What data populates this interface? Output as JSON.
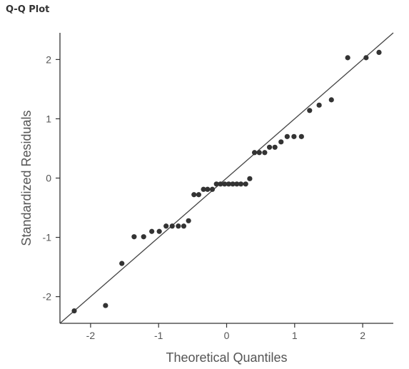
{
  "panel_title": "Q-Q Plot",
  "colors": {
    "point": "#333333",
    "line": "#444444",
    "axis": "#333333",
    "text": "#555555"
  },
  "chart_data": {
    "type": "scatter",
    "title": "",
    "xlabel": "Theoretical Quantiles",
    "ylabel": "Standardized Residuals",
    "xlim": [
      -2.45,
      2.45
    ],
    "ylim": [
      -2.45,
      2.45
    ],
    "xticks": [
      -2,
      -1,
      0,
      1,
      2
    ],
    "yticks": [
      -2,
      -1,
      0,
      1,
      2
    ],
    "x_tick_labels": [
      "-2",
      "-1",
      "0",
      "1",
      "2"
    ],
    "y_tick_labels": [
      "-2",
      "-1",
      "0",
      "1",
      "2"
    ],
    "grid": false,
    "reference_line": {
      "slope": 1,
      "intercept": 0
    },
    "series": [
      {
        "points": [
          [
            -2.24,
            -2.24
          ],
          [
            -1.78,
            -2.15
          ],
          [
            -1.54,
            -1.44
          ],
          [
            -1.36,
            -0.99
          ],
          [
            -1.22,
            -0.99
          ],
          [
            -1.1,
            -0.9
          ],
          [
            -0.99,
            -0.9
          ],
          [
            -0.89,
            -0.81
          ],
          [
            -0.8,
            -0.81
          ],
          [
            -0.71,
            -0.81
          ],
          [
            -0.63,
            -0.81
          ],
          [
            -0.56,
            -0.72
          ],
          [
            -0.48,
            -0.28
          ],
          [
            -0.41,
            -0.28
          ],
          [
            -0.34,
            -0.19
          ],
          [
            -0.28,
            -0.19
          ],
          [
            -0.21,
            -0.19
          ],
          [
            -0.15,
            -0.1
          ],
          [
            -0.09,
            -0.1
          ],
          [
            -0.03,
            -0.1
          ],
          [
            0.03,
            -0.1
          ],
          [
            0.09,
            -0.1
          ],
          [
            0.15,
            -0.1
          ],
          [
            0.21,
            -0.1
          ],
          [
            0.28,
            -0.1
          ],
          [
            0.34,
            -0.01
          ],
          [
            0.41,
            0.43
          ],
          [
            0.48,
            0.43
          ],
          [
            0.56,
            0.43
          ],
          [
            0.63,
            0.52
          ],
          [
            0.71,
            0.52
          ],
          [
            0.8,
            0.61
          ],
          [
            0.89,
            0.7
          ],
          [
            0.99,
            0.7
          ],
          [
            1.1,
            0.7
          ],
          [
            1.22,
            1.14
          ],
          [
            1.36,
            1.23
          ],
          [
            1.54,
            1.32
          ],
          [
            1.78,
            2.03
          ],
          [
            2.05,
            2.03
          ],
          [
            2.24,
            2.12
          ]
        ]
      }
    ]
  }
}
